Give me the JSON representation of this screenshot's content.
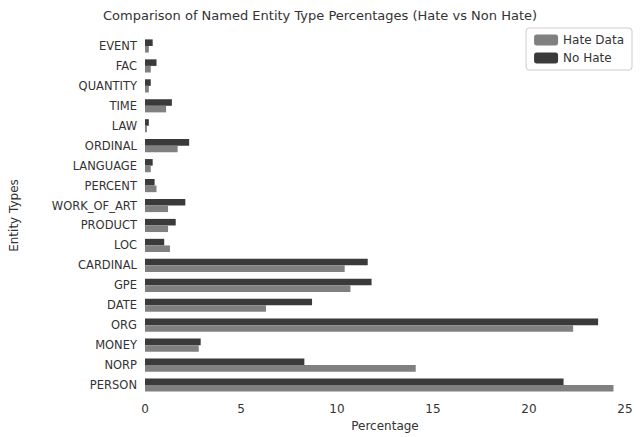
{
  "chart_data": {
    "type": "bar",
    "orientation": "horizontal",
    "title": "Comparison of Named Entity Type Percentages (Hate vs Non Hate)",
    "x_label": "Percentage",
    "y_label": "Entity Types",
    "categories": [
      "PERSON",
      "NORP",
      "MONEY",
      "ORG",
      "DATE",
      "GPE",
      "CARDINAL",
      "LOC",
      "PRODUCT",
      "WORK_OF_ART",
      "PERCENT",
      "LANGUAGE",
      "ORDINAL",
      "LAW",
      "TIME",
      "QUANTITY",
      "FAC",
      "EVENT"
    ],
    "series": [
      {
        "name": "Hate Data",
        "color": "#808080",
        "values": [
          24.4,
          14.1,
          2.8,
          22.3,
          6.3,
          10.7,
          10.4,
          1.3,
          1.2,
          1.2,
          0.6,
          0.3,
          1.7,
          0.1,
          1.1,
          0.2,
          0.3,
          0.2
        ]
      },
      {
        "name": "No Hate",
        "color": "#3a3a3a",
        "values": [
          21.8,
          8.3,
          2.9,
          23.6,
          8.7,
          11.8,
          11.6,
          1.0,
          1.6,
          2.1,
          0.5,
          0.4,
          2.3,
          0.2,
          1.4,
          0.3,
          0.6,
          0.4
        ]
      }
    ],
    "xlim": [
      0,
      25
    ],
    "xticks": [
      0,
      5,
      10,
      15,
      20,
      25
    ],
    "grid": false,
    "legend": "upper right"
  }
}
